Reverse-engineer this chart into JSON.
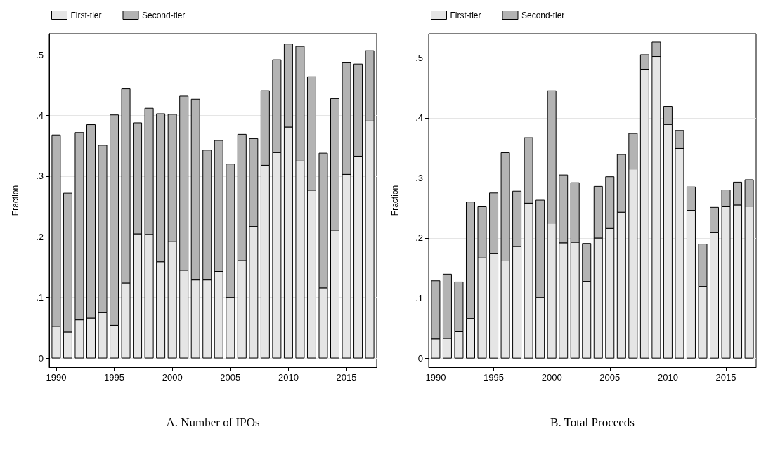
{
  "chart_data": [
    {
      "type": "bar",
      "stacked": true,
      "xlabel": "A. Number of IPOs",
      "ylabel": "Fraction",
      "legend": "top left",
      "grid": "y",
      "x": [
        1990,
        1991,
        1992,
        1993,
        1994,
        1995,
        1996,
        1997,
        1998,
        1999,
        2000,
        2001,
        2002,
        2003,
        2004,
        2005,
        2006,
        2007,
        2008,
        2009,
        2010,
        2011,
        2012,
        2013,
        2014,
        2015,
        2016,
        2017
      ],
      "series": [
        {
          "name": "First-tier",
          "color": "#e5e5e5",
          "values": [
            0.052,
            0.043,
            0.063,
            0.066,
            0.075,
            0.054,
            0.124,
            0.205,
            0.204,
            0.159,
            0.192,
            0.145,
            0.129,
            0.129,
            0.143,
            0.1,
            0.161,
            0.217,
            0.318,
            0.339,
            0.381,
            0.325,
            0.277,
            0.116,
            0.211,
            0.303,
            0.333,
            0.391
          ]
        },
        {
          "name": "Second-tier",
          "color": "#b3b3b3",
          "values": [
            0.316,
            0.229,
            0.309,
            0.319,
            0.276,
            0.347,
            0.32,
            0.183,
            0.208,
            0.244,
            0.21,
            0.287,
            0.298,
            0.214,
            0.216,
            0.22,
            0.208,
            0.145,
            0.123,
            0.153,
            0.137,
            0.189,
            0.187,
            0.222,
            0.217,
            0.184,
            0.152,
            0.116
          ]
        }
      ],
      "xlim": [
        1989.4,
        2017.6
      ],
      "xticks": [
        1990,
        1995,
        2000,
        2005,
        2010,
        2015
      ],
      "ylim": [
        -0.015,
        0.535
      ],
      "yticks": [
        0,
        {
          "value": 0.1,
          "label": ".1"
        },
        {
          "value": 0.2,
          "label": ".2"
        },
        {
          "value": 0.3,
          "label": ".3"
        },
        {
          "value": 0.4,
          "label": ".4"
        },
        {
          "value": 0.5,
          "label": ".5"
        }
      ]
    },
    {
      "type": "bar",
      "stacked": true,
      "xlabel": "B. Total Proceeds",
      "ylabel": "Fraction",
      "legend": "top left",
      "grid": "y",
      "x": [
        1990,
        1991,
        1992,
        1993,
        1994,
        1995,
        1996,
        1997,
        1998,
        1999,
        2000,
        2001,
        2002,
        2003,
        2004,
        2005,
        2006,
        2007,
        2008,
        2009,
        2010,
        2011,
        2012,
        2013,
        2014,
        2015,
        2016,
        2017
      ],
      "series": [
        {
          "name": "First-tier",
          "color": "#e5e5e5",
          "values": [
            0.032,
            0.033,
            0.044,
            0.066,
            0.167,
            0.174,
            0.162,
            0.186,
            0.258,
            0.101,
            0.225,
            0.192,
            0.193,
            0.128,
            0.2,
            0.216,
            0.243,
            0.315,
            0.481,
            0.502,
            0.389,
            0.349,
            0.246,
            0.119,
            0.209,
            0.252,
            0.255,
            0.253
          ]
        },
        {
          "name": "Second-tier",
          "color": "#b3b3b3",
          "values": [
            0.097,
            0.107,
            0.083,
            0.194,
            0.085,
            0.101,
            0.18,
            0.092,
            0.109,
            0.162,
            0.22,
            0.113,
            0.099,
            0.063,
            0.086,
            0.086,
            0.096,
            0.059,
            0.024,
            0.024,
            0.03,
            0.03,
            0.039,
            0.071,
            0.042,
            0.028,
            0.038,
            0.044
          ]
        }
      ],
      "xlim": [
        1989.4,
        2017.6
      ],
      "xticks": [
        1990,
        1995,
        2000,
        2005,
        2010,
        2015
      ],
      "ylim": [
        -0.015,
        0.54
      ],
      "yticks": [
        0,
        {
          "value": 0.1,
          "label": ".1"
        },
        {
          "value": 0.2,
          "label": ".2"
        },
        {
          "value": 0.3,
          "label": ".3"
        },
        {
          "value": 0.4,
          "label": ".4"
        },
        {
          "value": 0.5,
          "label": ".5"
        }
      ]
    }
  ]
}
